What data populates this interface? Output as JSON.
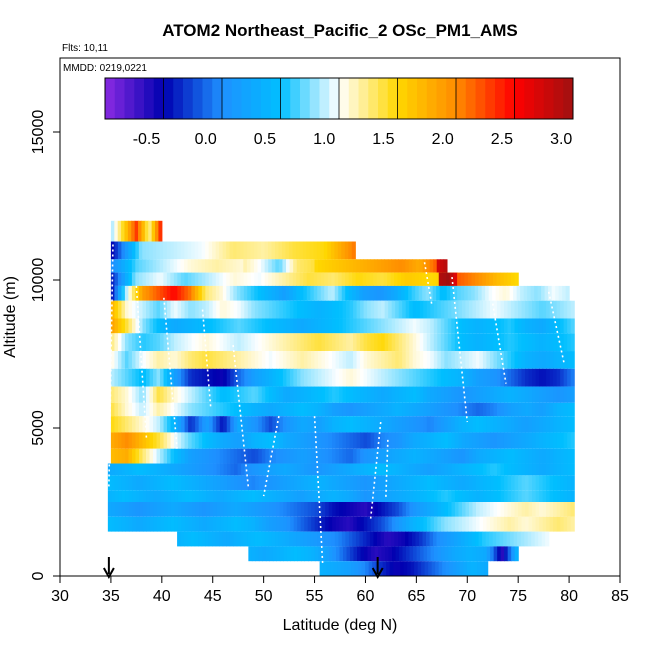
{
  "chart_data": {
    "type": "heatmap",
    "title": "ATOM2 Northeast_Pacific_2 OSc_PM1_AMS",
    "flights_label": "Flts: 10,11",
    "dates_label": "MMDD: 0219,0221",
    "xlabel": "Latitude (deg N)",
    "ylabel": "Altitude (m)",
    "xlim": [
      30,
      85
    ],
    "ylim": [
      0,
      17500
    ],
    "x_ticks": [
      "30",
      "35",
      "40",
      "45",
      "50",
      "55",
      "60",
      "65",
      "70",
      "75",
      "80",
      "85"
    ],
    "y_ticks": [
      "0",
      "5000",
      "10000",
      "15000"
    ],
    "colorbar": {
      "range": [
        -0.85,
        3.1
      ],
      "ticks": [
        "-0.5",
        "0.0",
        "0.5",
        "1.0",
        "1.5",
        "2.0",
        "2.5",
        "3.0"
      ],
      "colors": [
        "#8a2be2",
        "#0000b0",
        "#1e90ff",
        "#00bfff",
        "#ffffff",
        "#ffd700",
        "#ff8c00",
        "#ff0000",
        "#a01010"
      ]
    },
    "arrows_lat": [
      34.8,
      61.2
    ],
    "layers": [
      {
        "alt": [
          11300,
          12000
        ],
        "lat": [
          35,
          40
        ],
        "values": [
          0.9,
          1.6,
          2.4,
          1.3,
          2.6
        ]
      },
      {
        "alt": [
          10700,
          11300
        ],
        "lat": [
          35,
          59
        ],
        "values": [
          -0.4,
          0.9,
          1.0,
          1.1,
          1.4,
          1.3,
          1.5,
          1.6,
          2.2
        ]
      },
      {
        "alt": [
          10250,
          10700
        ],
        "lat": [
          35,
          48
        ],
        "values": [
          0.1,
          0.8,
          1.0,
          1.2,
          1.3,
          1.2
        ]
      },
      {
        "alt": [
          10250,
          10700
        ],
        "lat": [
          48,
          55
        ],
        "values": [
          1.3,
          1.1,
          0.8,
          1.4,
          1.5
        ]
      },
      {
        "alt": [
          10250,
          10700
        ],
        "lat": [
          55,
          67
        ],
        "values": [
          1.6,
          1.7,
          1.8,
          1.9,
          2.0,
          2.1,
          1.9,
          2.3
        ]
      },
      {
        "alt": [
          10250,
          10700
        ],
        "lat": [
          67,
          68
        ],
        "values": [
          2.8,
          3.0
        ]
      },
      {
        "alt": [
          9800,
          10250
        ],
        "lat": [
          35,
          69
        ],
        "values": [
          -0.3,
          0.9,
          1.1,
          0.8,
          1.0,
          1.2,
          1.1,
          1.3,
          1.5,
          1.4,
          1.6,
          1.5,
          1.7,
          1.6,
          1.8
        ]
      },
      {
        "alt": [
          9800,
          10250
        ],
        "lat": [
          67.2,
          69
        ],
        "values": [
          3.0,
          3.1,
          2.7
        ]
      },
      {
        "alt": [
          9800,
          10250
        ],
        "lat": [
          69,
          75
        ],
        "values": [
          2.3,
          2.1,
          1.8,
          1.6
        ]
      },
      {
        "alt": [
          9300,
          9800
        ],
        "lat": [
          35,
          80
        ],
        "values": [
          -0.4,
          1.0,
          2.0,
          2.3,
          2.6,
          2.2,
          1.4,
          1.2,
          0.9,
          0.7,
          0.5,
          0.3,
          0.6,
          0.8,
          1.0,
          0.6,
          0.3,
          0.2,
          0.4,
          0.7,
          0.9,
          0.6,
          0.8,
          0.9,
          1.1,
          1.2,
          1.0,
          0.9,
          1.1,
          1.0
        ]
      },
      {
        "alt": [
          8700,
          9300
        ],
        "lat": [
          35,
          80.5
        ],
        "values": [
          1.9,
          1.2,
          1.0,
          0.8,
          1.1,
          0.9,
          1.0,
          1.2,
          1.1,
          0.9,
          0.8,
          0.7,
          0.6,
          0.5,
          0.6,
          0.7,
          0.9,
          1.0,
          0.8,
          0.6,
          0.7,
          0.8,
          0.9,
          1.0,
          1.1,
          1.0,
          0.9,
          0.8,
          0.9,
          1.0
        ]
      },
      {
        "alt": [
          8200,
          8700
        ],
        "lat": [
          35,
          80.5
        ],
        "values": [
          2.0,
          1.5,
          0.9,
          0.6,
          0.4,
          0.5,
          0.6,
          0.7,
          0.8,
          0.7,
          0.6,
          0.5,
          0.4,
          0.5,
          0.6,
          0.7,
          0.8,
          0.9,
          1.0,
          1.1,
          1.0,
          0.8,
          0.6,
          0.5,
          0.6,
          0.7,
          0.5,
          0.4,
          0.6,
          0.8
        ]
      },
      {
        "alt": [
          7600,
          8200
        ],
        "lat": [
          35,
          80.5
        ],
        "values": [
          1.4,
          0.9,
          0.7,
          0.8,
          1.0,
          1.1,
          1.2,
          1.1,
          1.0,
          1.1,
          1.2,
          1.3,
          1.4,
          1.5,
          1.4,
          1.3,
          1.5,
          1.6,
          1.4,
          1.2,
          1.0,
          0.8,
          0.6,
          0.5,
          0.6,
          0.7,
          0.6,
          0.5,
          0.6,
          0.7
        ]
      },
      {
        "alt": [
          7000,
          7600
        ],
        "lat": [
          35,
          80.5
        ],
        "values": [
          1.2,
          0.8,
          1.1,
          1.3,
          1.2,
          1.4,
          1.5,
          1.4,
          1.3,
          1.2,
          1.1,
          1.2,
          1.3,
          1.2,
          1.1,
          1.0,
          1.2,
          1.3,
          1.4,
          1.2,
          1.1,
          0.9,
          1.0,
          1.1,
          0.9,
          0.7,
          0.5,
          0.4,
          0.5,
          0.6
        ]
      },
      {
        "alt": [
          6400,
          7000
        ],
        "lat": [
          35,
          80.5
        ],
        "values": [
          1.0,
          0.8,
          0.6,
          0.9,
          0.3,
          -0.2,
          -0.3,
          -0.4,
          0.0,
          0.3,
          0.5,
          0.7,
          0.9,
          1.0,
          1.1,
          1.2,
          1.1,
          1.0,
          0.9,
          0.8,
          0.7,
          0.6,
          0.5,
          0.3,
          0.2,
          0.0,
          -0.2,
          -0.3,
          -0.2,
          0.1
        ]
      },
      {
        "alt": [
          5850,
          6400
        ],
        "lat": [
          35,
          80.5
        ],
        "values": [
          1.4,
          1.2,
          0.9,
          1.5,
          1.2,
          1.0,
          0.8,
          0.6,
          0.7,
          0.8,
          0.6,
          0.4,
          0.5,
          0.6,
          0.7,
          0.6,
          0.5,
          0.4,
          0.5,
          0.6,
          0.4,
          0.3,
          0.2,
          0.3,
          0.4,
          0.5,
          0.4,
          0.3,
          0.2,
          0.3
        ]
      },
      {
        "alt": [
          5400,
          5850
        ],
        "lat": [
          35,
          80.5
        ],
        "values": [
          1.5,
          1.2,
          1.0,
          1.3,
          1.1,
          0.9,
          0.8,
          0.7,
          0.6,
          0.5,
          0.4,
          0.5,
          0.6,
          0.5,
          0.3,
          0.2,
          0.3,
          0.4,
          0.5,
          0.4,
          0.3,
          0.2,
          0.1,
          0.0,
          0.1,
          0.3,
          0.4,
          0.3,
          0.5,
          0.6
        ]
      },
      {
        "alt": [
          4850,
          5400
        ],
        "lat": [
          35,
          80.5
        ],
        "values": [
          1.6,
          1.4,
          1.2,
          1.0,
          0.5,
          -0.2,
          0.3,
          -0.3,
          0.4,
          0.2,
          -0.1,
          0.2,
          0.4,
          0.3,
          0.5,
          0.6,
          0.5,
          0.4,
          0.3,
          0.2,
          0.1,
          0.3,
          0.5,
          0.6,
          0.5,
          0.4,
          0.3,
          0.4,
          0.5,
          0.6
        ]
      },
      {
        "alt": [
          4300,
          4850
        ],
        "lat": [
          35,
          80.5
        ],
        "values": [
          1.9,
          2.1,
          1.8,
          1.5,
          1.1,
          0.8,
          0.6,
          0.4,
          0.3,
          0.5,
          0.6,
          0.4,
          0.3,
          0.2,
          0.1,
          0.0,
          -0.1,
          0.1,
          0.2,
          0.4,
          0.5,
          0.6,
          0.4,
          0.3,
          0.2,
          0.3,
          0.4,
          0.5,
          0.6,
          0.7
        ]
      },
      {
        "alt": [
          3800,
          4300
        ],
        "lat": [
          35,
          80.5
        ],
        "values": [
          1.8,
          1.9,
          1.4,
          1.0,
          0.6,
          0.3,
          0.2,
          0.1,
          0.0,
          -0.1,
          0.1,
          0.2,
          0.3,
          0.2,
          0.1,
          0.0,
          0.2,
          0.3,
          0.4,
          0.5,
          0.4,
          0.3,
          0.2,
          0.4,
          0.5,
          0.6,
          0.5,
          0.4,
          0.5,
          0.6
        ]
      },
      {
        "alt": [
          3400,
          3800
        ],
        "lat": [
          34.7,
          80.5
        ],
        "values": [
          0.4,
          0.5,
          0.6,
          0.5,
          0.4,
          0.3,
          0.2,
          0.1,
          0.0,
          0.2,
          0.3,
          0.4,
          0.3,
          0.2,
          0.3,
          0.4,
          0.5,
          0.6,
          0.5,
          0.4,
          0.3,
          0.4,
          0.5,
          0.6,
          0.7,
          0.6,
          0.5,
          0.4,
          0.5,
          0.6
        ]
      },
      {
        "alt": [
          2900,
          3400
        ],
        "lat": [
          34.7,
          80.5
        ],
        "values": [
          0.6,
          0.5,
          0.4,
          0.5,
          0.6,
          0.5,
          0.4,
          0.3,
          0.2,
          0.1,
          0.2,
          0.3,
          0.4,
          0.5,
          0.4,
          0.3,
          0.2,
          0.3,
          0.4,
          0.5,
          0.6,
          0.5,
          0.4,
          0.5,
          0.6,
          0.7,
          0.8,
          0.7,
          0.6,
          0.5
        ]
      },
      {
        "alt": [
          2500,
          2900
        ],
        "lat": [
          34.7,
          80.5
        ],
        "values": [
          0.5,
          0.6,
          0.5,
          0.4,
          0.5,
          0.6,
          0.5,
          0.4,
          0.5,
          0.6,
          0.5,
          0.4,
          0.3,
          0.4,
          0.5,
          0.4,
          0.2,
          0.3,
          0.4,
          0.5,
          0.6,
          0.7,
          0.6,
          0.5,
          0.6,
          0.7,
          0.8,
          0.7,
          0.6,
          0.5
        ]
      },
      {
        "alt": [
          2000,
          2500
        ],
        "lat": [
          34.7,
          80.5
        ],
        "values": [
          0.4,
          0.3,
          0.2,
          0.3,
          0.4,
          0.3,
          0.2,
          0.3,
          0.4,
          0.3,
          0.2,
          0.1,
          0.0,
          -0.1,
          -0.3,
          -0.4,
          -0.5,
          -0.3,
          -0.1,
          0.2,
          0.4,
          0.6,
          0.8,
          1.0,
          1.1,
          1.2,
          1.3,
          1.2,
          1.3,
          1.4
        ]
      },
      {
        "alt": [
          1500,
          2000
        ],
        "lat": [
          34.7,
          80.5
        ],
        "values": [
          0.6,
          0.5,
          0.4,
          0.5,
          0.6,
          0.5,
          0.4,
          0.5,
          0.6,
          0.5,
          0.3,
          0.2,
          0.0,
          -0.2,
          -0.4,
          -0.5,
          -0.3,
          -0.1,
          0.2,
          0.5,
          0.7,
          0.9,
          1.0,
          1.1,
          1.2,
          1.3,
          1.2,
          1.3,
          1.4,
          1.3
        ]
      },
      {
        "alt": [
          1000,
          1500
        ],
        "lat": [
          41.5,
          78
        ],
        "values": [
          0.5,
          0.6,
          0.5,
          0.4,
          0.5,
          0.6,
          0.5,
          0.4,
          0.3,
          0.2,
          0.1,
          -0.1,
          -0.3,
          -0.5,
          -0.4,
          -0.2,
          0.1,
          0.3,
          0.5,
          0.7,
          0.8,
          0.9,
          1.0,
          1.1
        ]
      },
      {
        "alt": [
          500,
          1000
        ],
        "lat": [
          48.5,
          75
        ],
        "values": [
          0.5,
          0.4,
          0.5,
          0.6,
          0.5,
          0.3,
          0.0,
          -0.3,
          -0.5,
          -0.4,
          -0.2,
          0.0,
          0.2,
          0.4,
          0.5,
          0.4,
          -0.5,
          0.6
        ]
      },
      {
        "alt": [
          0,
          500
        ],
        "lat": [
          55.5,
          72
        ],
        "values": [
          0.5,
          0.4,
          0.3,
          0.1,
          -0.2,
          -0.4,
          -0.3,
          -0.1,
          0.1,
          0.3,
          0.5,
          0.4
        ]
      }
    ]
  }
}
